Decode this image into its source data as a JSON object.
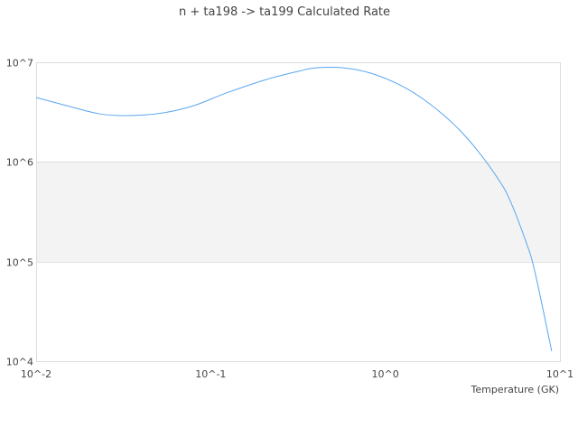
{
  "chart_data": {
    "type": "line",
    "title": "n + ta198 -> ta199 Calculated Rate",
    "xlabel": "Temperature (GK)",
    "ylabel": "",
    "xscale": "log",
    "yscale": "log",
    "xlim": [
      0.01,
      10
    ],
    "ylim": [
      10000,
      10000000
    ],
    "x_ticks": [
      {
        "value": 0.01,
        "label": "10^-2"
      },
      {
        "value": 0.1,
        "label": "10^-1"
      },
      {
        "value": 1,
        "label": "10^0"
      },
      {
        "value": 10,
        "label": "10^1"
      }
    ],
    "y_ticks": [
      {
        "value": 10000,
        "label": "10^4"
      },
      {
        "value": 100000,
        "label": "10^5"
      },
      {
        "value": 1000000,
        "label": "10^6"
      },
      {
        "value": 10000000,
        "label": "10^7"
      }
    ],
    "grid": "horizontal",
    "shaded_band": [
      100000,
      1000000
    ],
    "colors": {
      "line": "#5aa6f0",
      "band": "#f3f3f3",
      "grid": "#dddddd"
    },
    "series": [
      {
        "x": [
          0.01,
          0.0143,
          0.023,
          0.034,
          0.053,
          0.08,
          0.122,
          0.209,
          0.316,
          0.4,
          0.575,
          0.82,
          1.24,
          1.77,
          2.54,
          3.41,
          4.49,
          5.18,
          6.34,
          7.16,
          8.97
        ],
        "y": [
          4430000,
          3750000,
          3040000,
          2920000,
          3100000,
          3670000,
          4900000,
          6730000,
          8100000,
          8800000,
          8800000,
          7800000,
          5800000,
          3900000,
          2270000,
          1270000,
          650000,
          410000,
          164000,
          81000,
          12600
        ]
      }
    ]
  }
}
